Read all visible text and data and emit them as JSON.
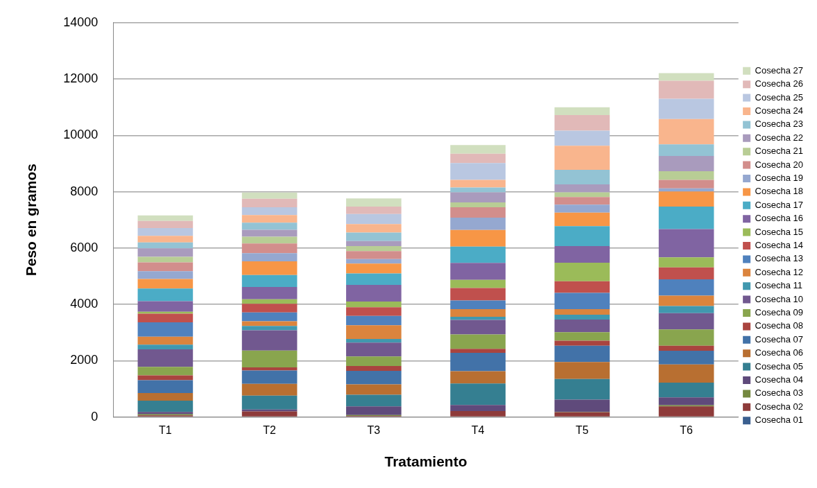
{
  "chart_data": {
    "type": "bar",
    "stacked": true,
    "xlabel": "Tratamiento",
    "ylabel": "Peso en gramos",
    "categories": [
      "T1",
      "T2",
      "T3",
      "T4",
      "T5",
      "T6"
    ],
    "ylim": [
      0,
      14000
    ],
    "yticks": [
      0,
      2000,
      4000,
      6000,
      8000,
      10000,
      12000,
      14000
    ],
    "grid": "y",
    "legend": "right",
    "series": [
      {
        "name": "Cosecha 01",
        "color": "#3a5f8f",
        "values": [
          20,
          20,
          20,
          20,
          20,
          20
        ]
      },
      {
        "name": "Cosecha 02",
        "color": "#8e3b3a",
        "values": [
          40,
          180,
          20,
          190,
          150,
          360
        ]
      },
      {
        "name": "Cosecha 03",
        "color": "#74883f",
        "values": [
          40,
          null,
          30,
          null,
          10,
          40
        ]
      },
      {
        "name": "Cosecha 04",
        "color": "#5f4a7b",
        "values": [
          80,
          70,
          310,
          220,
          440,
          280
        ]
      },
      {
        "name": "Cosecha 05",
        "color": "#357f91",
        "values": [
          400,
          490,
          410,
          760,
          730,
          520
        ]
      },
      {
        "name": "Cosecha 06",
        "color": "#b86f31",
        "values": [
          270,
          420,
          370,
          440,
          600,
          650
        ]
      },
      {
        "name": "Cosecha 07",
        "color": "#4272a8",
        "values": [
          460,
          470,
          480,
          650,
          580,
          480
        ]
      },
      {
        "name": "Cosecha 08",
        "color": "#a9443f",
        "values": [
          170,
          110,
          170,
          140,
          180,
          180
        ]
      },
      {
        "name": "Cosecha 09",
        "color": "#89a54e",
        "values": [
          300,
          600,
          340,
          510,
          300,
          580
        ]
      },
      {
        "name": "Cosecha 10",
        "color": "#71588f",
        "values": [
          620,
          720,
          490,
          520,
          450,
          580
        ]
      },
      {
        "name": "Cosecha 11",
        "color": "#4198af",
        "values": [
          170,
          150,
          130,
          110,
          170,
          250
        ]
      },
      {
        "name": "Cosecha 12",
        "color": "#db843d",
        "values": [
          280,
          170,
          490,
          270,
          200,
          370
        ]
      },
      {
        "name": "Cosecha 13",
        "color": "#4f81bd",
        "values": [
          510,
          310,
          330,
          310,
          580,
          580
        ]
      },
      {
        "name": "Cosecha 14",
        "color": "#c0504d",
        "values": [
          310,
          310,
          310,
          440,
          410,
          420
        ]
      },
      {
        "name": "Cosecha 15",
        "color": "#9bbb59",
        "values": [
          70,
          160,
          200,
          290,
          660,
          360
        ]
      },
      {
        "name": "Cosecha 16",
        "color": "#8064a2",
        "values": [
          370,
          440,
          590,
          600,
          590,
          1000
        ]
      },
      {
        "name": "Cosecha 17",
        "color": "#4bacc6",
        "values": [
          450,
          420,
          410,
          580,
          710,
          800
        ]
      },
      {
        "name": "Cosecha 18",
        "color": "#f79646",
        "values": [
          340,
          490,
          350,
          590,
          480,
          540
        ]
      },
      {
        "name": "Cosecha 19",
        "color": "#95a8d0",
        "values": [
          280,
          290,
          160,
          440,
          280,
          110
        ]
      },
      {
        "name": "Cosecha 20",
        "color": "#d28e8c",
        "values": [
          310,
          340,
          280,
          370,
          270,
          300
        ]
      },
      {
        "name": "Cosecha 21",
        "color": "#b8cd95",
        "values": [
          200,
          240,
          180,
          170,
          170,
          310
        ]
      },
      {
        "name": "Cosecha 22",
        "color": "#a99bbd",
        "values": [
          300,
          250,
          180,
          360,
          280,
          540
        ]
      },
      {
        "name": "Cosecha 23",
        "color": "#93c3d4",
        "values": [
          210,
          250,
          300,
          170,
          520,
          410
        ]
      },
      {
        "name": "Cosecha 24",
        "color": "#f9b58d",
        "values": [
          230,
          270,
          300,
          270,
          850,
          900
        ]
      },
      {
        "name": "Cosecha 25",
        "color": "#b9c7e1",
        "values": [
          280,
          280,
          360,
          600,
          540,
          720
        ]
      },
      {
        "name": "Cosecha 26",
        "color": "#e1b9b8",
        "values": [
          250,
          300,
          260,
          330,
          550,
          640
        ]
      },
      {
        "name": "Cosecha 27",
        "color": "#d1dfbf",
        "values": [
          200,
          220,
          290,
          310,
          280,
          270
        ]
      }
    ]
  }
}
